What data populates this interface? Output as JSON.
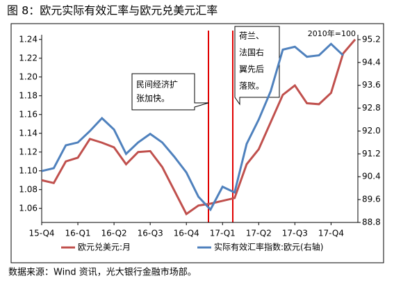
{
  "title": "图 8：欧元实际有效汇率与欧元兑美元汇率",
  "source": "数据来源：Wind 资讯，光大银行金融市场部。",
  "chart_data": {
    "type": "line",
    "categories": [
      "15-Q4",
      null,
      null,
      "16-Q1",
      null,
      null,
      "16-Q2",
      null,
      null,
      "16-Q3",
      null,
      null,
      "16-Q4",
      null,
      null,
      "17-Q1",
      null,
      null,
      "17-Q2",
      null,
      null,
      "17-Q3",
      null,
      null,
      "17-Q4",
      null,
      null
    ],
    "series": [
      {
        "name": "欧元兑美元:月",
        "color": "#c0504d",
        "values": [
          1.09,
          1.087,
          1.11,
          1.114,
          1.134,
          1.13,
          1.125,
          1.107,
          1.12,
          1.121,
          1.104,
          1.079,
          1.054,
          1.063,
          1.065,
          1.068,
          1.071,
          1.107,
          1.123,
          1.152,
          1.181,
          1.191,
          1.172,
          1.171,
          1.183,
          1.225,
          1.24
        ]
      },
      {
        "name": "实际有效汇率指数:欧元(右轴)",
        "color": "#4f81bd",
        "axis": "y2",
        "values": [
          90.6,
          90.7,
          91.5,
          91.6,
          92.0,
          92.45,
          92.05,
          91.2,
          91.6,
          91.9,
          91.6,
          91.1,
          90.55,
          89.7,
          89.25,
          90.05,
          89.85,
          91.55,
          92.4,
          93.4,
          94.85,
          94.95,
          94.6,
          94.65,
          95.05,
          94.65,
          null
        ]
      }
    ],
    "ylim": [
      1.045,
      1.245
    ],
    "yticks": [
      1.06,
      1.08,
      {
        "value": 1.1,
        "label": "1.10"
      },
      1.12,
      1.14,
      1.16,
      1.18,
      {
        "value": 1.2,
        "label": "1.20"
      },
      1.22,
      1.24
    ],
    "y2lim": [
      88.8,
      95.37
    ],
    "y2ticks": [
      88.8,
      89.6,
      90.4,
      91.2,
      {
        "value": 92,
        "label": "92.0"
      },
      92.8,
      93.6,
      94.4,
      95.2
    ],
    "annotations": [
      "民间经济扩",
      "张加快。",
      "荷兰、",
      "法国右",
      "翼先后",
      "落败。",
      "2010年=100"
    ]
  }
}
